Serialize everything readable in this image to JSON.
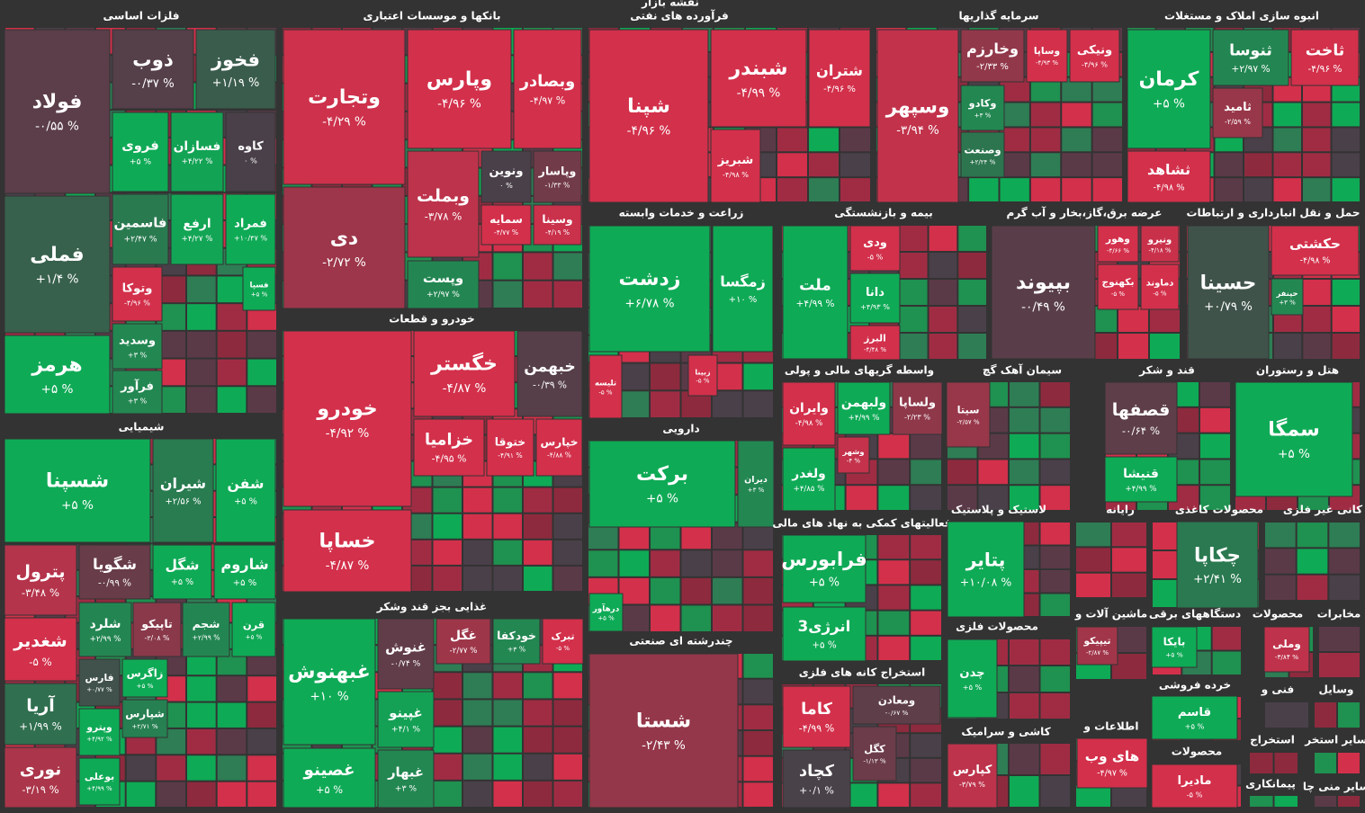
{
  "chart_data": {
    "type": "treemap",
    "title": "نقشه بازار",
    "up_color": "#0faa56",
    "down_color": "#d3304b",
    "flat_color": "#4a4049",
    "series": [
      {
        "name": "فلزات اساسی",
        "categories": [
          "فولاد",
          "فملی",
          "هرمز",
          "ذوب",
          "فخوز",
          "فروی",
          "فسازان",
          "کاوه",
          "فاسمین",
          "ارفع",
          "فمراد",
          "وتوکا",
          "فسپا",
          "وسدید",
          "فرآور"
        ],
        "values": [
          -0.55,
          1.4,
          5,
          -0.37,
          1.19,
          5,
          4.22,
          0,
          2.47,
          4.27,
          10.47,
          -4.96,
          5,
          3,
          3
        ],
        "value_labels": [
          "-۰/۵۵ %",
          "+۱/۴ %",
          "+۵ %",
          "-۰/۳۷ %",
          "+۱/۱۹ %",
          "+۵ %",
          "+۴/۲۲ %",
          "۰ %",
          "+۲/۴۷ %",
          "+۴/۲۷ %",
          "+۱۰/۴۷ %",
          "-۴/۹۶ %",
          "+۵ %",
          "+۳ %",
          "+۳ %"
        ]
      },
      {
        "name": "شیمیایی",
        "categories": [
          "شسپنا",
          "شیران",
          "شفن",
          "پترول",
          "شگویا",
          "شگل",
          "شاروم",
          "شغدیر",
          "شلرد",
          "تاپیکو",
          "شجم",
          "قرن",
          "آریا",
          "نوری",
          "فارس",
          "زاگرس",
          "شپارس",
          "وپترو",
          "بوعلی"
        ],
        "values": [
          5,
          2.56,
          5,
          -3.48,
          -0.99,
          5,
          5,
          -5,
          2.99,
          -2.08,
          2.99,
          5,
          1.99,
          -3.19,
          0.77,
          5,
          2.71,
          4.92,
          4.99
        ],
        "value_labels": [
          "+۵ %",
          "+۲/۵۶ %",
          "+۵ %",
          "-۳/۴۸ %",
          "-۰/۹۹ %",
          "+۵ %",
          "+۵ %",
          "-۵ %",
          "+۲/۹۹ %",
          "-۲/۰۸ %",
          "+۲/۹۹ %",
          "+۵ %",
          "+۱/۹۹ %",
          "-۳/۱۹ %",
          "+۰/۷۷ %",
          "+۵ %",
          "+۲/۷۱ %",
          "+۴/۹۲ %",
          "+۴/۹۹ %"
        ]
      },
      {
        "name": "بانکها و موسسات اعتباری",
        "categories": [
          "وتجارت",
          "دی",
          "وپارس",
          "وبصادر",
          "وبملت",
          "ونوین",
          "وپاسار",
          "سمایه",
          "وسینا",
          "وپست"
        ],
        "values": [
          -4.29,
          -2.72,
          -4.96,
          -4.97,
          -3.78,
          0,
          -1.33,
          -4.77,
          -4.19,
          2.97
        ],
        "value_labels": [
          "-۴/۲۹ %",
          "-۲/۷۲ %",
          "-۴/۹۶ %",
          "-۴/۹۷ %",
          "-۳/۷۸ %",
          "۰ %",
          "-۱/۳۳ %",
          "-۴/۷۷ %",
          "-۴/۱۹ %",
          "+۲/۹۷ %"
        ]
      },
      {
        "name": "خودرو و قطعات",
        "categories": [
          "خودرو",
          "خساپا",
          "خگستر",
          "خبهمن",
          "خزامیا",
          "ختوقا",
          "خپارس"
        ],
        "values": [
          -4.92,
          -4.87,
          -4.87,
          -0.39,
          -4.95,
          -4.91,
          -4.88
        ],
        "value_labels": [
          "-۴/۹۲ %",
          "-۴/۸۷ %",
          "-۴/۸۷ %",
          "-۰/۳۹ %",
          "-۴/۹۵ %",
          "-۴/۹۱ %",
          "-۴/۸۸ %"
        ]
      },
      {
        "name": "غذایی بجز قند وشکر",
        "categories": [
          "غبهنوش",
          "غنوش",
          "غگل",
          "خودکفا",
          "تبرک",
          "غپینو",
          "غصینو",
          "غبهار"
        ],
        "values": [
          10,
          -0.74,
          -2.77,
          3,
          -5,
          4.1,
          5,
          3
        ],
        "value_labels": [
          "+۱۰ %",
          "-۰/۷۴ %",
          "-۲/۷۷ %",
          "+۳ %",
          "-۵ %",
          "+۴/۱ %",
          "+۵ %",
          "+۳ %"
        ]
      },
      {
        "name": "فرآورده های نفتی",
        "categories": [
          "شپنا",
          "شبندر",
          "شتران",
          "شبریز"
        ],
        "values": [
          -4.96,
          -4.99,
          -4.96,
          -4.98
        ],
        "value_labels": [
          "-۴/۹۶ %",
          "-۴/۹۹ %",
          "-۴/۹۶ %",
          "-۴/۹۸ %"
        ]
      },
      {
        "name": "زراعت و خدمات وابسته",
        "categories": [
          "زدشت",
          "زمگسا",
          "تلیسه",
          "زبینا"
        ],
        "values": [
          6.78,
          10,
          -5,
          -5
        ],
        "value_labels": [
          "+۶/۷۸ %",
          "+۱۰ %",
          "-۵ %",
          "-۵ %"
        ]
      },
      {
        "name": "دارویی",
        "categories": [
          "برکت",
          "دیران",
          "درهآور"
        ],
        "values": [
          5,
          3,
          5
        ],
        "value_labels": [
          "+۵ %",
          "+۳ %",
          "+۵ %"
        ]
      },
      {
        "name": "چندرشته ای صنعتی",
        "categories": [
          "شستا"
        ],
        "values": [
          -2.43
        ],
        "value_labels": [
          "-۲/۴۳ %"
        ]
      },
      {
        "name": "سرمایه گذاریها",
        "categories": [
          "وسپهر",
          "وخارزم",
          "وساپا",
          "ونیکی",
          "وکادو",
          "وصنعت"
        ],
        "values": [
          -3.94,
          -2.33,
          -4.93,
          -4.96,
          3,
          2.24
        ],
        "value_labels": [
          "-۳/۹۴ %",
          "-۲/۳۳ %",
          "-۴/۹۳ %",
          "-۴/۹۶ %",
          "+۳ %",
          "+۲/۲۴ %"
        ]
      },
      {
        "name": "انبوه سازی املاک و مستغلات",
        "categories": [
          "کرمان",
          "ثنوسا",
          "ثاخت",
          "ثامید",
          "ثشاهد"
        ],
        "values": [
          5,
          2.97,
          -4.96,
          -2.59,
          -4.98
        ],
        "value_labels": [
          "+۵ %",
          "+۲/۹۷ %",
          "-۴/۹۶ %",
          "-۲/۵۹ %",
          "-۴/۹۸ %"
        ]
      },
      {
        "name": "بیمه و بازنشستگی",
        "categories": [
          "ملت",
          "ودی",
          "دانا",
          "البرز"
        ],
        "values": [
          4.99,
          -5,
          4.93,
          -4.48
        ],
        "value_labels": [
          "+۴/۹۹ %",
          "-۵ %",
          "+۴/۹۳ %",
          "-۴/۴۸ %"
        ]
      },
      {
        "name": "عرضه برق،گاز،بخار و آب گرم",
        "categories": [
          "بپیوند",
          "ونیرو",
          "وهور",
          "دماوند",
          "بکهنوج"
        ],
        "values": [
          -0.49,
          -4.18,
          -4.66,
          -5,
          -5
        ],
        "value_labels": [
          "-۰/۴۹ %",
          "-۴/۱۸ %",
          "-۴/۶۶ %",
          "-۵ %",
          "-۵ %"
        ]
      },
      {
        "name": "حمل و نقل انبارداری و ارتباطات",
        "categories": [
          "حسینا",
          "حکشتی",
          "حپنفر"
        ],
        "values": [
          0.79,
          -4.98,
          3
        ],
        "value_labels": [
          "+۰/۷۹ %",
          "-۴/۹۸ %",
          "+۳ %"
        ]
      },
      {
        "name": "واسطه گریهای مالی و پولی",
        "categories": [
          "وایران",
          "ولبهمن",
          "ولساپا",
          "وشهر",
          "ولغدر"
        ],
        "values": [
          -4.98,
          4.99,
          -2.23,
          -4,
          4.85
        ],
        "value_labels": [
          "-۴/۹۸ %",
          "+۴/۹۹ %",
          "-۲/۲۳ %",
          "-۴ %",
          "+۴/۸۵ %"
        ]
      },
      {
        "name": "سیمان آهک گچ",
        "categories": [
          "سیتا"
        ],
        "values": [
          -2.57
        ],
        "value_labels": [
          "-۲/۵۷ %"
        ]
      },
      {
        "name": "قند و شکر",
        "categories": [
          "قصفها",
          "قنیشا"
        ],
        "values": [
          -0.64,
          4.99
        ],
        "value_labels": [
          "-۰/۶۴ %",
          "+۴/۹۹ %"
        ]
      },
      {
        "name": "هتل و رستوران",
        "categories": [
          "سمگا"
        ],
        "values": [
          5
        ],
        "value_labels": [
          "+۵ %"
        ]
      },
      {
        "name": "فعالیتهای کمکی به نهاد های مالی",
        "categories": [
          "فرابورس",
          "انرژی3"
        ],
        "values": [
          5,
          5
        ],
        "value_labels": [
          "+۵ %",
          "+۵ %"
        ]
      },
      {
        "name": "استخراج کانه های فلزی",
        "categories": [
          "کاما",
          "ومعادن",
          "کگل",
          "کچاد"
        ],
        "values": [
          -4.99,
          -0.67,
          -1.13,
          0.1
        ],
        "value_labels": [
          "-۴/۹۹ %",
          "-۰/۶۷ %",
          "-۱/۱۳ %",
          "+۰/۱ %"
        ]
      },
      {
        "name": "لاستیک و پلاستیک",
        "categories": [
          "پتایر"
        ],
        "values": [
          10.08
        ],
        "value_labels": [
          "+۱۰/۰۸ %"
        ]
      },
      {
        "name": "محصولات فلزی",
        "categories": [
          "چدن"
        ],
        "values": [
          5
        ],
        "value_labels": [
          "+۵ %"
        ]
      },
      {
        "name": "کاشی و سرامیک",
        "categories": [
          "کپارس"
        ],
        "values": [
          -3.79
        ],
        "value_labels": [
          "-۳/۷۹ %"
        ]
      },
      {
        "name": "رایانه",
        "categories": [],
        "values": [],
        "value_labels": []
      },
      {
        "name": "محصولات کاغذی",
        "categories": [
          "چکاپا"
        ],
        "values": [
          2.41
        ],
        "value_labels": [
          "+۲/۴۱ %"
        ]
      },
      {
        "name": "کانی غیر فلزی",
        "categories": [],
        "values": [],
        "value_labels": []
      },
      {
        "name": "ماشین آلات و",
        "categories": [
          "تیپیکو"
        ],
        "values": [
          -2.87
        ],
        "value_labels": [
          "-۲/۸۷ %"
        ]
      },
      {
        "name": "دستگاههای برقی",
        "categories": [
          "بایکا"
        ],
        "values": [
          5
        ],
        "value_labels": [
          "+۵ %"
        ]
      },
      {
        "name": "محصولات",
        "categories": [
          "وملی"
        ],
        "values": [
          -3.84
        ],
        "value_labels": [
          "-۳/۸۴ %"
        ]
      },
      {
        "name": "مخابرات",
        "categories": [],
        "values": [],
        "value_labels": []
      },
      {
        "name": "خرده فروشی",
        "categories": [
          "قاسم"
        ],
        "values": [
          5
        ],
        "value_labels": [
          "+۵ %"
        ]
      },
      {
        "name": "فنی و",
        "categories": [],
        "values": [],
        "value_labels": []
      },
      {
        "name": "وسایل",
        "categories": [],
        "values": [],
        "value_labels": []
      },
      {
        "name": "اطلاعات و",
        "categories": [
          "های وب"
        ],
        "values": [
          -4.97
        ],
        "value_labels": [
          "-۴/۹۷ %"
        ]
      },
      {
        "name": "محصولات",
        "categories": [
          "مادیرا"
        ],
        "values": [
          -5
        ],
        "value_labels": [
          "-۵ %"
        ]
      },
      {
        "name": "استخراج",
        "categories": [],
        "values": [],
        "value_labels": []
      },
      {
        "name": "سایر استخر",
        "categories": [],
        "values": [],
        "value_labels": []
      },
      {
        "name": "پیمانکاری",
        "categories": [],
        "values": [],
        "value_labels": []
      },
      {
        "name": "سایر منی چا",
        "categories": [],
        "values": [],
        "value_labels": []
      }
    ]
  }
}
